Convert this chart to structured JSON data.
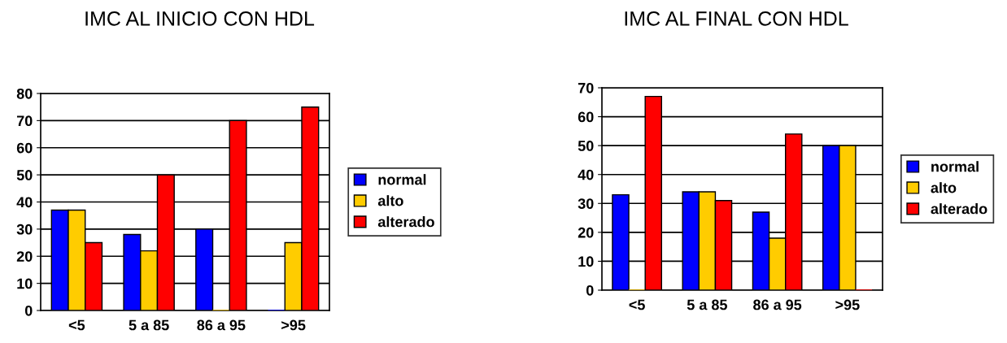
{
  "chart_data": [
    {
      "type": "bar",
      "title": "IMC AL INICIO CON HDL",
      "categories": [
        "<5",
        "5 a 85",
        "86 a 95",
        ">95"
      ],
      "series": [
        {
          "name": "normal",
          "color": "#0000ff",
          "values": [
            37,
            28,
            30,
            0
          ]
        },
        {
          "name": "alto",
          "color": "#ffcc00",
          "values": [
            37,
            22,
            0,
            25
          ]
        },
        {
          "name": "alterado",
          "color": "#ff0000",
          "values": [
            25,
            50,
            70,
            75
          ]
        }
      ],
      "ylim": [
        0,
        80
      ],
      "yticks": [
        0,
        10,
        20,
        30,
        40,
        50,
        60,
        70,
        80
      ],
      "grid": "y",
      "legend": "right"
    },
    {
      "type": "bar",
      "title": "IMC AL FINAL CON HDL",
      "categories": [
        "<5",
        "5 a 85",
        "86 a 95",
        ">95"
      ],
      "series": [
        {
          "name": "normal",
          "color": "#0000ff",
          "values": [
            33,
            34,
            27,
            50
          ]
        },
        {
          "name": "alto",
          "color": "#ffcc00",
          "values": [
            0,
            34,
            18,
            50
          ]
        },
        {
          "name": "alterado",
          "color": "#ff0000",
          "values": [
            67,
            31,
            54,
            0
          ]
        }
      ],
      "ylim": [
        0,
        70
      ],
      "yticks": [
        0,
        10,
        20,
        30,
        40,
        50,
        60,
        70
      ],
      "grid": "y",
      "legend": "right"
    }
  ]
}
